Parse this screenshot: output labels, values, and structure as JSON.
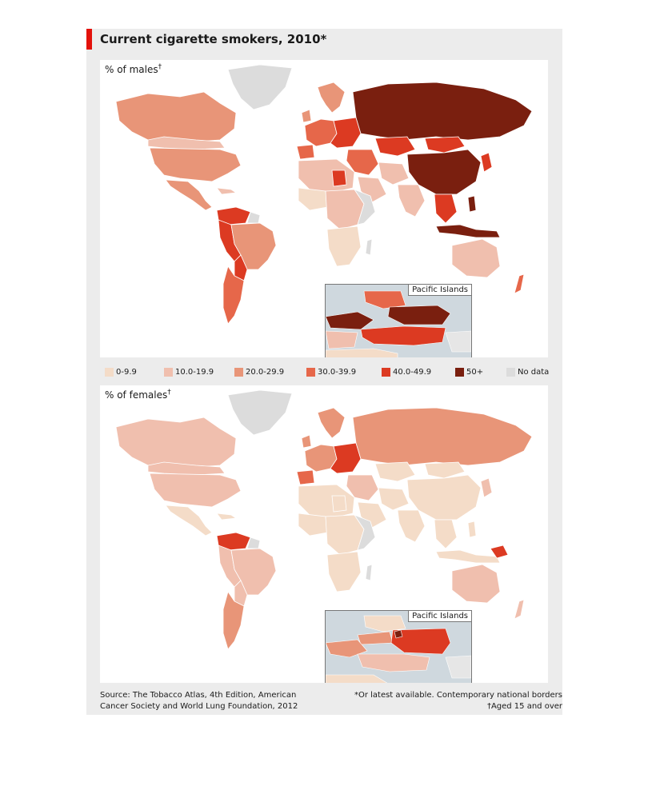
{
  "title": "Current cigarette smokers, 2010*",
  "panels": {
    "males": {
      "label": "% of males",
      "dagger": "†",
      "inset_label": "Pacific Islands"
    },
    "females": {
      "label": "% of females",
      "dagger": "†",
      "inset_label": "Pacific Islands"
    }
  },
  "legend": [
    {
      "label": "0-9.9",
      "color": "#f4dcc8"
    },
    {
      "label": "10.0-19.9",
      "color": "#f0bfae"
    },
    {
      "label": "20.0-29.9",
      "color": "#e89578"
    },
    {
      "label": "30.0-39.9",
      "color": "#e6674a"
    },
    {
      "label": "40.0-49.9",
      "color": "#dc3a22"
    },
    {
      "label": "50+",
      "color": "#7a1f0f"
    },
    {
      "label": "No data",
      "color": "#dcdcdc"
    }
  ],
  "footer": {
    "source_line1": "Source: The Tobacco Atlas, 4th Edition, American",
    "source_line2": "Cancer Society and World Lung Foundation, 2012",
    "note_line1": "*Or latest available. Contemporary national borders",
    "note_line2": "†Aged 15 and over"
  },
  "colors": {
    "accent": "#e3120b",
    "ocean": "#ffffff",
    "background": "#ececec"
  }
}
